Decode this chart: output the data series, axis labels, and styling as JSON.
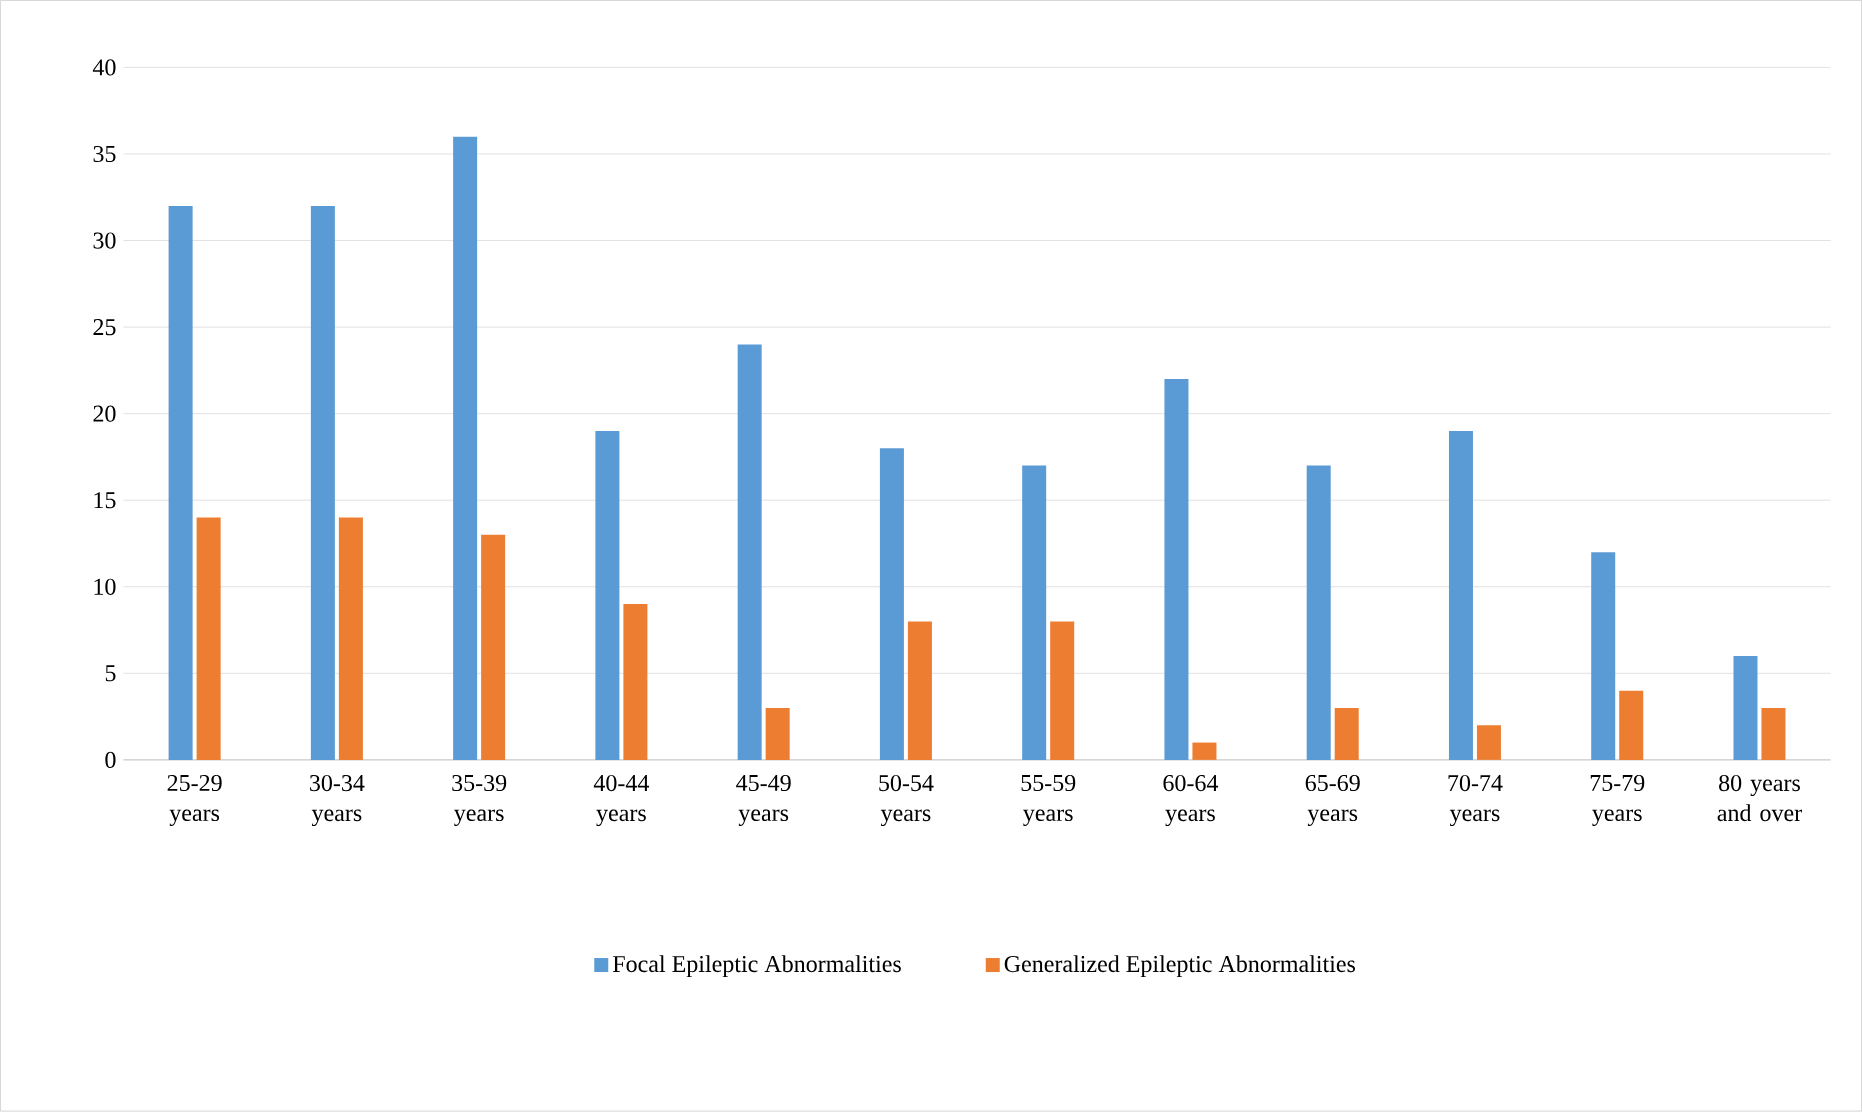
{
  "chart_data": {
    "type": "bar",
    "categories": [
      "25-29 years",
      "30-34 years",
      "35-39 years",
      "40-44 years",
      "45-49 years",
      "50-54 years",
      "55-59 years",
      "60-64 years",
      "65-69 years",
      "70-74 years",
      "75-79 years",
      "80 years and over"
    ],
    "series": [
      {
        "name": "Focal Epileptic Abnormalities",
        "color": "#5b9bd5",
        "values": [
          32,
          32,
          36,
          19,
          24,
          18,
          17,
          22,
          17,
          19,
          12,
          6
        ]
      },
      {
        "name": "Generalized Epileptic Abnormalities",
        "color": "#ed7d31",
        "values": [
          14,
          14,
          13,
          9,
          3,
          8,
          8,
          1,
          3,
          2,
          4,
          3
        ]
      }
    ],
    "ylim": [
      0,
      40
    ],
    "yticks": [
      0,
      5,
      10,
      15,
      20,
      25,
      30,
      35,
      40
    ],
    "grid": "y",
    "legend": "bottom"
  }
}
